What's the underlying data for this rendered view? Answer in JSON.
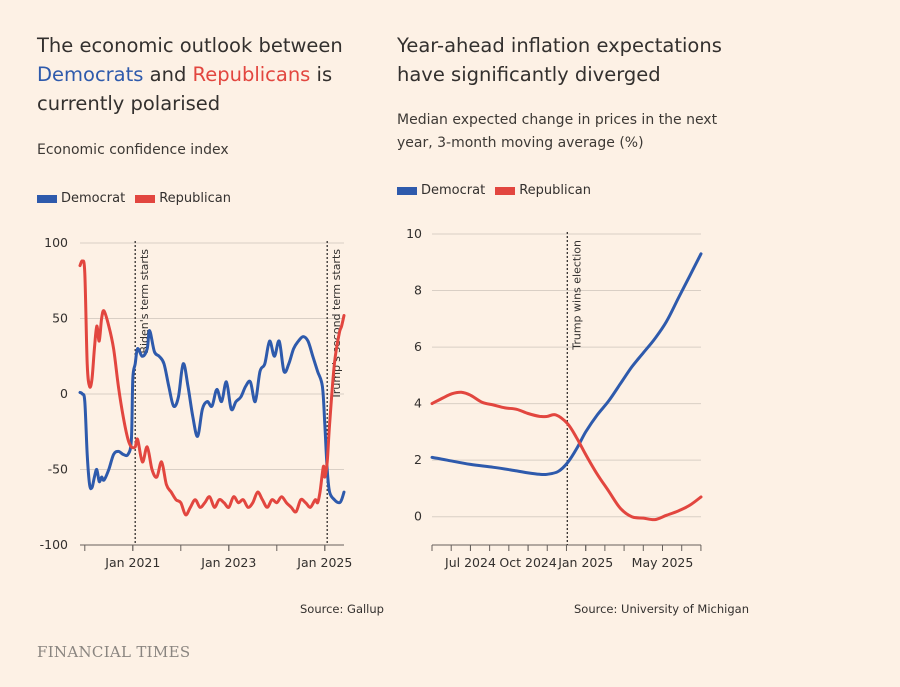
{
  "colors": {
    "democrat": "#2e5aac",
    "republican": "#e2463f",
    "background": "#fdf1e5",
    "grid": "#d9cfc5"
  },
  "left": {
    "title_pre": "The economic outlook between ",
    "title_dem": "Democrats",
    "title_mid": " and ",
    "title_rep": "Republicans",
    "title_post": " is currently polarised",
    "subtitle": "Economic confidence index",
    "legend": [
      "Democrat",
      "Republican"
    ],
    "source": "Source: Gallup"
  },
  "right": {
    "title": "Year-ahead inflation expectations have significantly diverged",
    "subtitle": "Median expected change in prices in the next year, 3-month moving average (%)",
    "legend": [
      "Democrat",
      "Republican"
    ],
    "source": "Source: University of Michigan"
  },
  "footer": {
    "logo": "FINANCIAL TIMES"
  },
  "chart_data": [
    {
      "type": "line",
      "title": "Economic confidence index",
      "ylim": [
        -100,
        100
      ],
      "yticks": [
        100,
        50,
        0,
        -50,
        -100
      ],
      "xlim": [
        2019.9,
        2025.4
      ],
      "xticks": [
        {
          "value": 2021,
          "label": "Jan 2021"
        },
        {
          "value": 2023,
          "label": "Jan 2023"
        },
        {
          "value": 2025,
          "label": "Jan 2025"
        }
      ],
      "annotations": [
        {
          "x": 2021.05,
          "label": "Biden's term starts"
        },
        {
          "x": 2025.05,
          "label": "Trump's second term starts"
        }
      ],
      "series": [
        {
          "name": "Democrat",
          "color": "#2e5aac",
          "x": [
            2019.9,
            2019.95,
            2020.0,
            2020.05,
            2020.1,
            2020.15,
            2020.2,
            2020.25,
            2020.3,
            2020.35,
            2020.4,
            2020.5,
            2020.6,
            2020.7,
            2020.8,
            2020.9,
            2020.97,
            2021.0,
            2021.05,
            2021.1,
            2021.2,
            2021.3,
            2021.35,
            2021.45,
            2021.55,
            2021.65,
            2021.75,
            2021.85,
            2021.95,
            2022.05,
            2022.15,
            2022.25,
            2022.35,
            2022.45,
            2022.55,
            2022.65,
            2022.75,
            2022.85,
            2022.95,
            2023.05,
            2023.15,
            2023.25,
            2023.35,
            2023.45,
            2023.55,
            2023.65,
            2023.75,
            2023.85,
            2023.95,
            2024.05,
            2024.15,
            2024.25,
            2024.35,
            2024.45,
            2024.55,
            2024.65,
            2024.75,
            2024.85,
            2024.95,
            2025.0,
            2025.05,
            2025.1,
            2025.2,
            2025.3,
            2025.35,
            2025.4
          ],
          "y": [
            1,
            0,
            -5,
            -40,
            -60,
            -62,
            -55,
            -50,
            -58,
            -55,
            -57,
            -50,
            -40,
            -38,
            -40,
            -40,
            -30,
            10,
            20,
            30,
            25,
            30,
            42,
            28,
            25,
            20,
            5,
            -8,
            -2,
            20,
            5,
            -15,
            -28,
            -10,
            -5,
            -8,
            3,
            -5,
            8,
            -10,
            -5,
            -2,
            5,
            8,
            -5,
            15,
            20,
            35,
            25,
            35,
            15,
            20,
            30,
            35,
            38,
            35,
            25,
            15,
            5,
            -20,
            -50,
            -65,
            -70,
            -72,
            -70,
            -65
          ]
        },
        {
          "name": "Republican",
          "color": "#e2463f",
          "x": [
            2019.9,
            2019.95,
            2020.0,
            2020.05,
            2020.1,
            2020.15,
            2020.2,
            2020.25,
            2020.3,
            2020.35,
            2020.4,
            2020.5,
            2020.6,
            2020.7,
            2020.8,
            2020.9,
            2020.97,
            2021.05,
            2021.1,
            2021.2,
            2021.3,
            2021.4,
            2021.5,
            2021.6,
            2021.7,
            2021.8,
            2021.9,
            2022.0,
            2022.1,
            2022.2,
            2022.3,
            2022.4,
            2022.5,
            2022.6,
            2022.7,
            2022.8,
            2022.9,
            2023.0,
            2023.1,
            2023.2,
            2023.3,
            2023.4,
            2023.5,
            2023.6,
            2023.7,
            2023.8,
            2023.9,
            2024.0,
            2024.1,
            2024.2,
            2024.3,
            2024.4,
            2024.5,
            2024.6,
            2024.7,
            2024.8,
            2024.85,
            2024.9,
            2024.97,
            2025.0,
            2025.05,
            2025.1,
            2025.2,
            2025.3,
            2025.35,
            2025.4
          ],
          "y": [
            85,
            88,
            80,
            20,
            5,
            10,
            30,
            45,
            35,
            50,
            55,
            45,
            30,
            5,
            -15,
            -30,
            -35,
            -35,
            -30,
            -45,
            -35,
            -50,
            -55,
            -45,
            -60,
            -65,
            -70,
            -72,
            -80,
            -75,
            -70,
            -75,
            -72,
            -68,
            -75,
            -70,
            -72,
            -75,
            -68,
            -72,
            -70,
            -75,
            -72,
            -65,
            -70,
            -75,
            -70,
            -72,
            -68,
            -72,
            -75,
            -78,
            -70,
            -72,
            -75,
            -70,
            -72,
            -65,
            -48,
            -55,
            -45,
            -20,
            20,
            40,
            45,
            52
          ]
        }
      ]
    },
    {
      "type": "line",
      "title": "Year-ahead inflation expectations",
      "ylabel": "%",
      "ylim": [
        -1,
        10
      ],
      "yticks": [
        10,
        8,
        6,
        4,
        2,
        0
      ],
      "xlim": [
        2024.333,
        2025.5
      ],
      "xticks": [
        {
          "value": 2024.5,
          "label": "Jul 2024"
        },
        {
          "value": 2024.75,
          "label": "Oct 2024"
        },
        {
          "value": 2025.0,
          "label": "Jan 2025"
        },
        {
          "value": 2025.333,
          "label": "May 2025"
        }
      ],
      "annotations": [
        {
          "x": 2024.92,
          "label": "Trump wins election"
        }
      ],
      "series": [
        {
          "name": "Democrat",
          "color": "#2e5aac",
          "x": [
            2024.333,
            2024.4,
            2024.5,
            2024.6,
            2024.7,
            2024.75,
            2024.8,
            2024.833,
            2024.88,
            2024.92,
            2024.96,
            2025.0,
            2025.05,
            2025.1,
            2025.15,
            2025.2,
            2025.25,
            2025.3,
            2025.35,
            2025.4,
            2025.45,
            2025.5
          ],
          "y": [
            2.1,
            2.0,
            1.85,
            1.75,
            1.62,
            1.55,
            1.5,
            1.5,
            1.6,
            1.9,
            2.4,
            3.0,
            3.6,
            4.1,
            4.7,
            5.3,
            5.8,
            6.3,
            6.9,
            7.7,
            8.5,
            9.3
          ]
        },
        {
          "name": "Republican",
          "color": "#e2463f",
          "x": [
            2024.333,
            2024.38,
            2024.42,
            2024.46,
            2024.5,
            2024.55,
            2024.6,
            2024.65,
            2024.7,
            2024.75,
            2024.8,
            2024.833,
            2024.87,
            2024.92,
            2024.96,
            2025.0,
            2025.05,
            2025.1,
            2025.15,
            2025.2,
            2025.25,
            2025.3,
            2025.35,
            2025.4,
            2025.45,
            2025.5
          ],
          "y": [
            4.0,
            4.2,
            4.35,
            4.4,
            4.3,
            4.05,
            3.95,
            3.85,
            3.8,
            3.65,
            3.55,
            3.55,
            3.6,
            3.3,
            2.8,
            2.2,
            1.5,
            0.9,
            0.3,
            0.0,
            -0.05,
            -0.1,
            0.05,
            0.2,
            0.4,
            0.7
          ]
        }
      ]
    }
  ]
}
